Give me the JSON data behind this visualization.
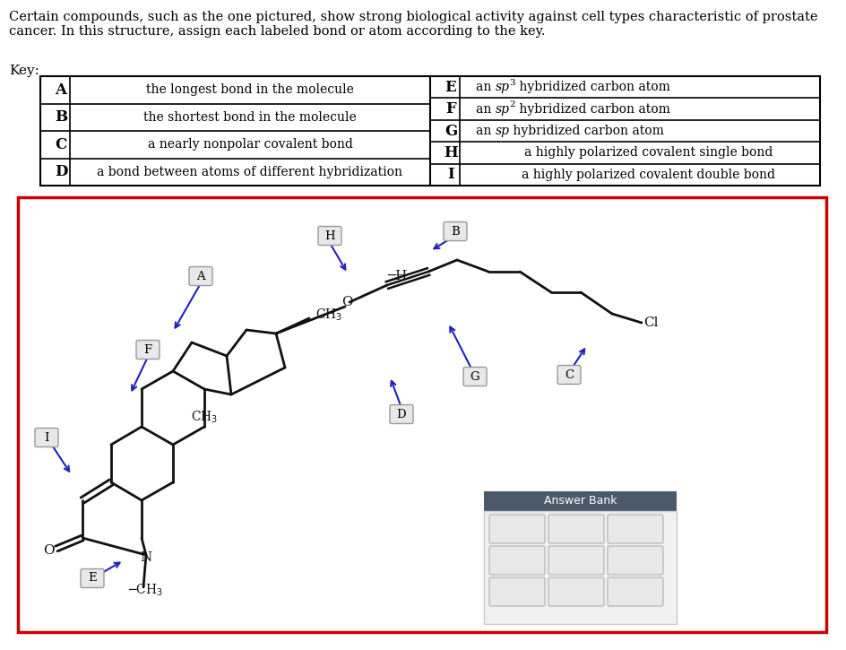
{
  "title": "Certain compounds, such as the one pictured, show strong biological activity against cell types characteristic of prostate\ncancer. In this structure, assign each labeled bond or atom according to the key.",
  "key_label": "Key:",
  "left_rows": [
    [
      "A",
      "the longest bond in the molecule"
    ],
    [
      "B",
      "the shortest bond in the molecule"
    ],
    [
      "C",
      "a nearly nonpolar covalent bond"
    ],
    [
      "D",
      "a bond between atoms of different hybridization"
    ]
  ],
  "right_rows": [
    [
      "E",
      "an sp3 hybridized carbon atom"
    ],
    [
      "F",
      "an sp2 hybridized carbon atom"
    ],
    [
      "G",
      "an sp hybridized carbon atom"
    ],
    [
      "H",
      "a highly polarized covalent single bond"
    ],
    [
      "I",
      "a highly polarized covalent double bond"
    ]
  ],
  "red_color": "#cc0000",
  "blue_color": "#2222bb",
  "black_color": "#111111",
  "answer_bank_header": "#4a5a6b",
  "answer_bank_text": "#ffffff",
  "label_fc": "#e8e8e8",
  "label_ec": "#999999"
}
